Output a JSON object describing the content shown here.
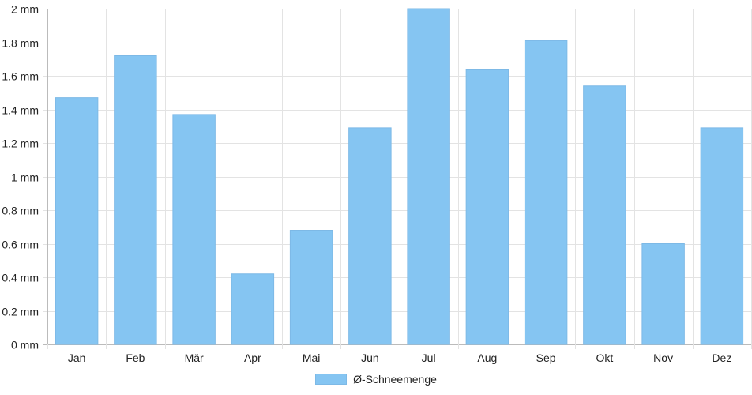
{
  "chart_data": {
    "type": "bar",
    "categories": [
      "Jan",
      "Feb",
      "Mär",
      "Apr",
      "Mai",
      "Jun",
      "Jul",
      "Aug",
      "Sep",
      "Okt",
      "Nov",
      "Dez"
    ],
    "series": [
      {
        "name": "Ø-Schneemenge",
        "values": [
          1.47,
          1.72,
          1.37,
          0.42,
          0.68,
          1.29,
          2.0,
          1.64,
          1.81,
          1.54,
          0.6,
          1.29
        ],
        "color": "#85C5F2"
      }
    ],
    "ylim": [
      0,
      2
    ],
    "ytick_labels": [
      "0 mm",
      "0.2 mm",
      "0.4 mm",
      "0.6 mm",
      "0.8 mm",
      "1 mm",
      "1.2 mm",
      "1.4 mm",
      "1.6 mm",
      "1.8 mm",
      "2 mm"
    ],
    "grid": true,
    "legend_position": "bottom-center"
  }
}
